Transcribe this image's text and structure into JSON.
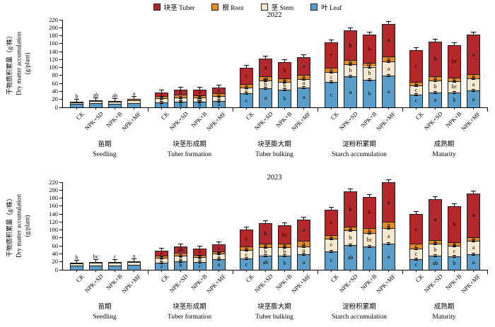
{
  "legend": {
    "items": [
      {
        "name": "tuber",
        "label": "块茎 Tuber",
        "color": "#b4282b"
      },
      {
        "name": "root",
        "label": "根 Root",
        "color": "#e68a1f"
      },
      {
        "name": "stem",
        "label": "茎 Stem",
        "color": "#f7e8d0"
      },
      {
        "name": "leaf",
        "label": "叶 Leaf",
        "color": "#5b9dc9"
      }
    ]
  },
  "y_axis": {
    "title_cn": "干物质积累量（g/株）",
    "title_en": "Dry matter accumulation",
    "title_unit": "(g/plant)",
    "min": 0,
    "max": 220,
    "step": 20
  },
  "treatments": [
    "CK",
    "NPK+SD",
    "NPK+B",
    "NPK+MF"
  ],
  "stages": [
    {
      "cn": "苗期",
      "en": "Seedling"
    },
    {
      "cn": "块茎形成期",
      "en": "Tuber formation"
    },
    {
      "cn": "块茎膨大期",
      "en": "Tuber bulking"
    },
    {
      "cn": "淀粉积累期",
      "en": "Starch accumulation"
    },
    {
      "cn": "成熟期",
      "en": "Maturity"
    }
  ],
  "chart_data": [
    {
      "type": "bar",
      "stacked": true,
      "title": "2022",
      "ylabel": "Dry matter accumulation (g/plant)",
      "ylim": [
        0,
        220
      ],
      "stack_order_bottom_to_top": [
        "leaf",
        "stem",
        "root",
        "tuber"
      ],
      "groups": [
        {
          "stage": "Seedling",
          "bars": [
            {
              "treatment": "CK",
              "leaf": 8,
              "stem": 4.5,
              "root": 1,
              "tuber": 0,
              "letters": {
                "top": "b"
              }
            },
            {
              "treatment": "NPK+SD",
              "leaf": 10,
              "stem": 6,
              "root": 1.5,
              "tuber": 0,
              "letters": {
                "top": "ab"
              }
            },
            {
              "treatment": "NPK+B",
              "leaf": 9.5,
              "stem": 5.5,
              "root": 1.5,
              "tuber": 0,
              "letters": {
                "top": "ab"
              }
            },
            {
              "treatment": "NPK+MF",
              "leaf": 11,
              "stem": 7.5,
              "root": 2,
              "tuber": 0,
              "letters": {
                "top": "a"
              }
            }
          ]
        },
        {
          "stage": "Tuber formation",
          "bars": [
            {
              "treatment": "CK",
              "leaf": 13,
              "stem": 10,
              "root": 5,
              "tuber": 10,
              "letters": {
                "leaf": "c",
                "stem": "c",
                "tuber": "c"
              }
            },
            {
              "treatment": "NPK+SD",
              "leaf": 14,
              "stem": 11,
              "root": 7,
              "tuber": 12,
              "letters": {
                "leaf": "a",
                "stem": "a",
                "tuber": "b"
              }
            },
            {
              "treatment": "NPK+B",
              "leaf": 14,
              "stem": 11,
              "root": 6,
              "tuber": 13,
              "letters": {
                "leaf": "b",
                "stem": "bc",
                "tuber": "b"
              }
            },
            {
              "treatment": "NPK+MF",
              "leaf": 16,
              "stem": 12,
              "root": 7,
              "tuber": 14,
              "letters": {
                "leaf": "a",
                "stem": "a",
                "tuber": "a"
              }
            }
          ]
        },
        {
          "stage": "Tuber bulking",
          "bars": [
            {
              "treatment": "CK",
              "leaf": 35,
              "stem": 15,
              "root": 9,
              "tuber": 40,
              "letters": {
                "leaf": "c",
                "stem": "c",
                "root": "c",
                "tuber": "c"
              }
            },
            {
              "treatment": "NPK+SD",
              "leaf": 48,
              "stem": 19,
              "root": 11,
              "tuber": 44,
              "letters": {
                "leaf": "a",
                "stem": "b",
                "root": "ab",
                "tuber": "a"
              }
            },
            {
              "treatment": "NPK+B",
              "leaf": 44,
              "stem": 19,
              "root": 9,
              "tuber": 42,
              "letters": {
                "leaf": "b",
                "stem": "b",
                "root": "b",
                "tuber": "b"
              }
            },
            {
              "treatment": "NPK+MF",
              "leaf": 50,
              "stem": 21,
              "root": 11,
              "tuber": 44,
              "letters": {
                "leaf": "a",
                "stem": "a",
                "root": "a",
                "tuber": "a"
              }
            }
          ]
        },
        {
          "stage": "Starch accumulation",
          "bars": [
            {
              "treatment": "CK",
              "leaf": 63,
              "stem": 26,
              "root": 11,
              "tuber": 63,
              "letters": {
                "leaf": "c",
                "stem": "c",
                "root": "c",
                "tuber": "c"
              }
            },
            {
              "treatment": "NPK+SD",
              "leaf": 78,
              "stem": 30,
              "root": 11,
              "tuber": 74,
              "letters": {
                "leaf": "a",
                "stem": "b",
                "root": "b",
                "tuber": "b"
              }
            },
            {
              "treatment": "NPK+B",
              "leaf": 69,
              "stem": 33,
              "root": 9,
              "tuber": 71,
              "letters": {
                "leaf": "b",
                "stem": "b",
                "root": "bc",
                "tuber": "b"
              }
            },
            {
              "treatment": "NPK+MF",
              "leaf": 80,
              "stem": 35,
              "root": 13,
              "tuber": 82,
              "letters": {
                "leaf": "a",
                "stem": "a",
                "root": "a",
                "tuber": "a"
              }
            }
          ]
        },
        {
          "stage": "Maturity",
          "bars": [
            {
              "treatment": "CK",
              "leaf": 32,
              "stem": 23,
              "root": 8,
              "tuber": 80,
              "letters": {
                "leaf": "c",
                "stem": "c",
                "root": "c",
                "tuber": "c"
              }
            },
            {
              "treatment": "NPK+SD",
              "leaf": 38,
              "stem": 30,
              "root": 10,
              "tuber": 87,
              "letters": {
                "leaf": "a",
                "stem": "b",
                "root": "b",
                "tuber": "b"
              }
            },
            {
              "treatment": "NPK+B",
              "leaf": 37,
              "stem": 29,
              "root": 9,
              "tuber": 81,
              "letters": {
                "leaf": "b",
                "stem": "bc",
                "root": "c",
                "tuber": "bc"
              }
            },
            {
              "treatment": "NPK+MF",
              "leaf": 42,
              "stem": 31,
              "root": 11,
              "tuber": 98,
              "letters": {
                "leaf": "a",
                "stem": "a",
                "root": "a",
                "tuber": "a"
              }
            }
          ]
        }
      ]
    },
    {
      "type": "bar",
      "stacked": true,
      "title": "2023",
      "ylabel": "Dry matter accumulation (g/plant)",
      "ylim": [
        0,
        220
      ],
      "stack_order_bottom_to_top": [
        "leaf",
        "stem",
        "root",
        "tuber"
      ],
      "groups": [
        {
          "stage": "Seedling",
          "bars": [
            {
              "treatment": "CK",
              "leaf": 10,
              "stem": 6,
              "root": 2,
              "tuber": 0,
              "letters": {
                "top": "b"
              }
            },
            {
              "treatment": "NPK+SD",
              "leaf": 11,
              "stem": 7,
              "root": 2,
              "tuber": 0,
              "letters": {
                "top": "bc"
              }
            },
            {
              "treatment": "NPK+B",
              "leaf": 10.5,
              "stem": 6.5,
              "root": 2,
              "tuber": 0,
              "letters": {
                "top": "c"
              }
            },
            {
              "treatment": "NPK+MF",
              "leaf": 12,
              "stem": 7,
              "root": 2.5,
              "tuber": 0,
              "letters": {
                "top": "a"
              }
            }
          ]
        },
        {
          "stage": "Tuber formation",
          "bars": [
            {
              "treatment": "CK",
              "leaf": 17,
              "stem": 13,
              "root": 5,
              "tuber": 13,
              "letters": {
                "leaf": "c",
                "stem": "c",
                "tuber": "c"
              }
            },
            {
              "treatment": "NPK+SD",
              "leaf": 22,
              "stem": 14,
              "root": 6,
              "tuber": 16,
              "letters": {
                "leaf": "b",
                "stem": "b",
                "tuber": "ab"
              }
            },
            {
              "treatment": "NPK+B",
              "leaf": 19,
              "stem": 13,
              "root": 6,
              "tuber": 16,
              "letters": {
                "leaf": "c",
                "stem": "b",
                "tuber": "b"
              }
            },
            {
              "treatment": "NPK+MF",
              "leaf": 26,
              "stem": 15,
              "root": 6,
              "tuber": 16,
              "letters": {
                "leaf": "a",
                "stem": "a",
                "root": "a",
                "tuber": "a"
              }
            }
          ]
        },
        {
          "stage": "Tuber bulking",
          "bars": [
            {
              "treatment": "CK",
              "leaf": 28,
              "stem": 21,
              "root": 9,
              "tuber": 43,
              "letters": {
                "leaf": "c",
                "stem": "c",
                "root": "c",
                "tuber": "c"
              }
            },
            {
              "treatment": "NPK+SD",
              "leaf": 36,
              "stem": 20,
              "root": 10,
              "tuber": 51,
              "letters": {
                "leaf": "ab",
                "stem": "b",
                "root": "b",
                "tuber": "b"
              }
            },
            {
              "treatment": "NPK+B",
              "leaf": 35,
              "stem": 21,
              "root": 9,
              "tuber": 47,
              "letters": {
                "leaf": "b",
                "stem": "b",
                "root": "b",
                "tuber": "bc"
              }
            },
            {
              "treatment": "NPK+MF",
              "leaf": 39,
              "stem": 20,
              "root": 14,
              "tuber": 53,
              "letters": {
                "leaf": "a",
                "stem": "a",
                "root": "a",
                "tuber": "a"
              }
            }
          ]
        },
        {
          "stage": "Starch accumulation",
          "bars": [
            {
              "treatment": "CK",
              "leaf": 47,
              "stem": 31,
              "root": 9,
              "tuber": 64,
              "letters": {
                "leaf": "c",
                "stem": "c",
                "root": "c",
                "tuber": "c"
              }
            },
            {
              "treatment": "NPK+SD",
              "leaf": 62,
              "stem": 37,
              "root": 9,
              "tuber": 89,
              "letters": {
                "leaf": "ab",
                "stem": "b",
                "root": "a",
                "tuber": "b"
              }
            },
            {
              "treatment": "NPK+B",
              "leaf": 58,
              "stem": 34,
              "root": 13,
              "tuber": 78,
              "letters": {
                "leaf": "c",
                "stem": "bc",
                "root": "b",
                "tuber": "b"
              }
            },
            {
              "treatment": "NPK+MF",
              "leaf": 65,
              "stem": 39,
              "root": 16,
              "tuber": 100,
              "letters": {
                "leaf": "a",
                "stem": "a",
                "root": "a",
                "tuber": "a"
              }
            }
          ]
        },
        {
          "stage": "Maturity",
          "bars": [
            {
              "treatment": "CK",
              "leaf": 27,
              "stem": 27,
              "root": 11,
              "tuber": 75,
              "letters": {
                "leaf": "c",
                "stem": "c",
                "root": "c",
                "tuber": "c"
              }
            },
            {
              "treatment": "NPK+SD",
              "leaf": 35,
              "stem": 31,
              "root": 9,
              "tuber": 102,
              "letters": {
                "leaf": "ab",
                "stem": "b",
                "root": "b",
                "tuber": "a"
              }
            },
            {
              "treatment": "NPK+B",
              "leaf": 33,
              "stem": 27,
              "root": 9,
              "tuber": 90,
              "letters": {
                "leaf": "b",
                "stem": "c",
                "root": "a",
                "tuber": "b"
              }
            },
            {
              "treatment": "NPK+MF",
              "leaf": 39,
              "stem": 33,
              "root": 10,
              "tuber": 110,
              "letters": {
                "leaf": "a",
                "stem": "a",
                "root": "a",
                "tuber": "a"
              }
            }
          ]
        }
      ]
    }
  ]
}
